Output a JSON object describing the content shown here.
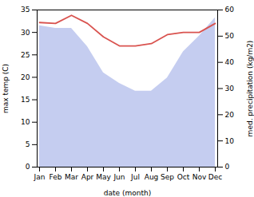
{
  "chart_data": {
    "type": "line",
    "xlabel": "date (month)",
    "ylabel": "max temp (C)",
    "y2label": "med. precipitation (kg/m2)",
    "categories": [
      "Jan",
      "Feb",
      "Mar",
      "Apr",
      "May",
      "Jun",
      "Jul",
      "Aug",
      "Sep",
      "Oct",
      "Nov",
      "Dec"
    ],
    "series": [
      {
        "type": "area",
        "axis": "y2",
        "color": "#c5cdf0",
        "values": [
          54,
          53,
          53,
          46,
          36,
          32,
          29,
          29,
          34,
          44,
          50,
          57
        ]
      },
      {
        "type": "line",
        "color": "#d9534f",
        "values": [
          32.2,
          32.0,
          33.8,
          32.0,
          29.0,
          27.0,
          27.0,
          27.5,
          29.5,
          30.0,
          30.0,
          32.0
        ]
      }
    ],
    "ylim": [
      0,
      35
    ],
    "yticks": [
      0,
      5,
      10,
      15,
      20,
      25,
      30,
      35
    ],
    "y2lim": [
      0,
      60
    ],
    "y2ticks": [
      0,
      10,
      20,
      30,
      40,
      50,
      60
    ]
  }
}
